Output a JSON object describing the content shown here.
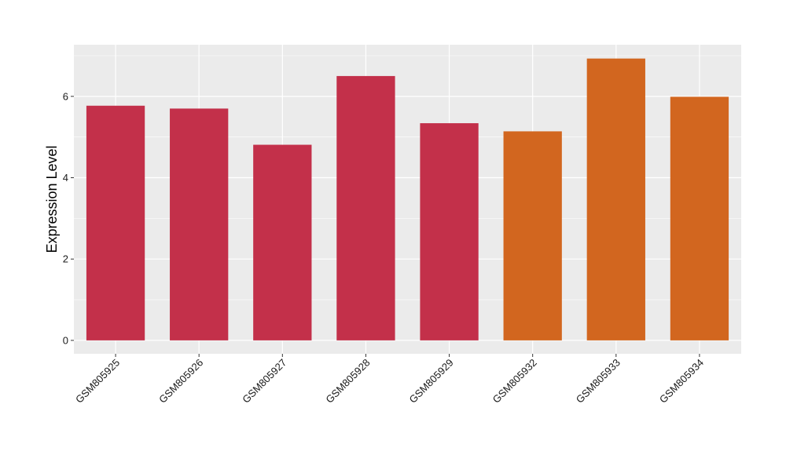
{
  "chart_data": {
    "type": "bar",
    "title": "",
    "xlabel": "",
    "ylabel": "Expression Level",
    "categories": [
      "GSM805925",
      "GSM805926",
      "GSM805927",
      "GSM805928",
      "GSM805929",
      "GSM805932",
      "GSM805933",
      "GSM805934"
    ],
    "values": [
      5.77,
      5.7,
      4.81,
      6.5,
      5.34,
      5.14,
      6.93,
      5.99
    ],
    "bar_colors": [
      "#c3304a",
      "#c3304a",
      "#c3304a",
      "#c3304a",
      "#c3304a",
      "#d2661f",
      "#d2661f",
      "#d2661f"
    ],
    "ylim": [
      -0.33,
      7.27
    ],
    "yticks": [
      0,
      2,
      4,
      6
    ],
    "grid": true,
    "legend": "none",
    "panel_background": "#ebebeb",
    "gridline_color": "#ffffff"
  }
}
